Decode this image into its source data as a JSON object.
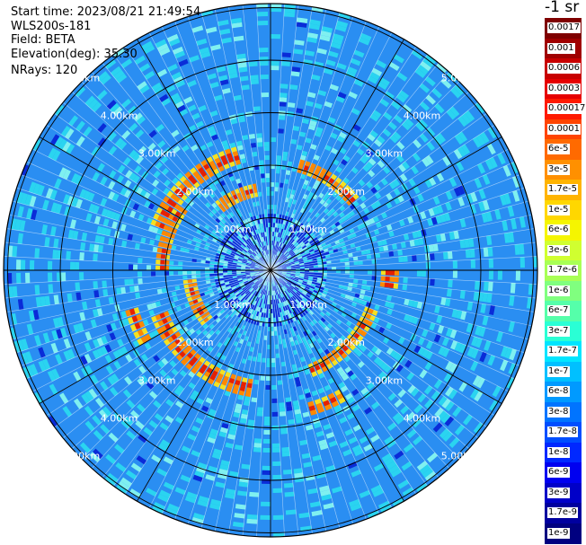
{
  "info": {
    "start_time": "Start time: 2023/08/21 21:49:54",
    "instrument": "WLS200s-181",
    "field": "Field: BETA",
    "elevation": "Elevation(deg): 35.30",
    "nrays": "NRays: 120"
  },
  "colorbar": {
    "title": "-1 sr",
    "labels": [
      "0.0017",
      "0.001",
      "0.0006",
      "0.0003",
      "0.00017",
      "0.0001",
      "6e-5",
      "3e-5",
      "1.7e-5",
      "1e-5",
      "6e-6",
      "3e-6",
      "1.7e-6",
      "1e-6",
      "6e-7",
      "3e-7",
      "1.7e-7",
      "1e-7",
      "6e-8",
      "3e-8",
      "1.7e-8",
      "1e-8",
      "6e-9",
      "3e-9",
      "1.7e-9",
      "1e-9"
    ],
    "colors": [
      "#7f0000",
      "#a00000",
      "#c80000",
      "#e60000",
      "#ff1a00",
      "#ff4400",
      "#ff6a00",
      "#ff9000",
      "#ffb400",
      "#ffd700",
      "#f5f500",
      "#d0ff30",
      "#a8ff55",
      "#80ff7f",
      "#55ffaa",
      "#2affd5",
      "#00e5ff",
      "#00c0ff",
      "#009aff",
      "#0074ff",
      "#004eff",
      "#0028ff",
      "#0000f0",
      "#0000c8",
      "#00009f",
      "#000080"
    ]
  },
  "range_rings": {
    "labels": [
      "1.00km",
      "2.00km",
      "3.00km",
      "4.00km",
      "5.00km"
    ]
  },
  "palette": {
    "background": "#2a8ef2",
    "cyan": "#2ad4f0",
    "light_cyan": "#7ff0f0",
    "deep_blue": "#0a2cd8",
    "yellow": "#f5e020",
    "orange": "#ff8800",
    "red": "#e62000"
  }
}
